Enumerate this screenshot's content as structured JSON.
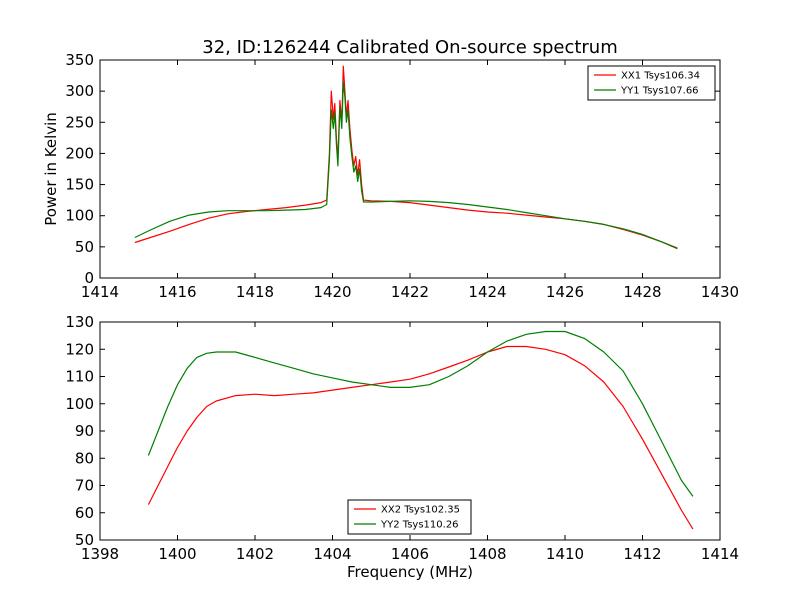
{
  "figure": {
    "title": "32, ID:126244 Calibrated On-source spectrum",
    "xlabel": "Frequency (MHz)",
    "top_ylabel": "Power in Kelvin"
  },
  "chart_data": [
    {
      "type": "line",
      "title": "32, ID:126244 Calibrated On-source spectrum",
      "xlabel": "",
      "ylabel": "Power in Kelvin",
      "xlim": [
        1414,
        1430
      ],
      "ylim": [
        0,
        350
      ],
      "xticks": [
        1414,
        1416,
        1418,
        1420,
        1422,
        1424,
        1426,
        1428,
        1430
      ],
      "yticks": [
        0,
        50,
        100,
        150,
        200,
        250,
        300,
        350
      ],
      "grid": false,
      "legend_position": "top-right",
      "series": [
        {
          "name": "XX1 Tsys106.34",
          "color": "#ff0000",
          "x": [
            1414.9,
            1415.3,
            1415.8,
            1416.3,
            1416.8,
            1417.3,
            1417.8,
            1418.3,
            1418.8,
            1419.3,
            1419.7,
            1419.85,
            1419.92,
            1419.97,
            1420.02,
            1420.06,
            1420.1,
            1420.14,
            1420.19,
            1420.24,
            1420.28,
            1420.32,
            1420.36,
            1420.4,
            1420.45,
            1420.5,
            1420.55,
            1420.6,
            1420.65,
            1420.7,
            1420.75,
            1420.8,
            1421.0,
            1421.5,
            1422.0,
            1422.5,
            1423.0,
            1423.5,
            1424.0,
            1424.5,
            1425.0,
            1425.5,
            1426.0,
            1426.5,
            1427.0,
            1427.5,
            1428.0,
            1428.5,
            1428.9
          ],
          "values": [
            57,
            65,
            75,
            86,
            96,
            103,
            107,
            110,
            113,
            117,
            121,
            125,
            200,
            300,
            255,
            280,
            225,
            190,
            285,
            250,
            340,
            300,
            260,
            285,
            240,
            205,
            180,
            195,
            165,
            190,
            150,
            125,
            124,
            123,
            121,
            117,
            113,
            109,
            106,
            104,
            101,
            98,
            95,
            91,
            86,
            78,
            69,
            58,
            48
          ]
        },
        {
          "name": "YY1 Tsys107.66",
          "color": "#008000",
          "x": [
            1414.9,
            1415.3,
            1415.8,
            1416.3,
            1416.8,
            1417.3,
            1417.8,
            1418.3,
            1418.8,
            1419.3,
            1419.7,
            1419.85,
            1419.92,
            1419.97,
            1420.02,
            1420.06,
            1420.1,
            1420.14,
            1420.19,
            1420.24,
            1420.28,
            1420.32,
            1420.36,
            1420.4,
            1420.45,
            1420.5,
            1420.55,
            1420.6,
            1420.65,
            1420.7,
            1420.75,
            1420.8,
            1421.0,
            1421.5,
            1422.0,
            1422.5,
            1423.0,
            1423.5,
            1424.0,
            1424.5,
            1425.0,
            1425.5,
            1426.0,
            1426.5,
            1427.0,
            1427.5,
            1428.0,
            1428.5,
            1428.9
          ],
          "values": [
            65,
            77,
            91,
            101,
            106,
            108,
            108,
            108,
            109,
            110,
            113,
            118,
            190,
            270,
            240,
            265,
            215,
            180,
            275,
            240,
            315,
            290,
            250,
            270,
            225,
            195,
            170,
            180,
            155,
            175,
            140,
            122,
            122,
            123,
            124,
            123,
            121,
            118,
            114,
            110,
            105,
            100,
            95,
            91,
            86,
            79,
            70,
            58,
            47
          ]
        }
      ]
    },
    {
      "type": "line",
      "title": "",
      "xlabel": "Frequency (MHz)",
      "ylabel": "",
      "xlim": [
        1398,
        1414
      ],
      "ylim": [
        50,
        130
      ],
      "xticks": [
        1398,
        1400,
        1402,
        1404,
        1406,
        1408,
        1410,
        1412,
        1414
      ],
      "yticks": [
        50,
        60,
        70,
        80,
        90,
        100,
        110,
        120,
        130
      ],
      "grid": false,
      "legend_position": "bottom-center",
      "series": [
        {
          "name": "XX2 Tsys102.35",
          "color": "#ff0000",
          "x": [
            1399.25,
            1399.5,
            1399.75,
            1400.0,
            1400.25,
            1400.5,
            1400.75,
            1401.0,
            1401.5,
            1402.0,
            1402.5,
            1403.0,
            1403.5,
            1404.0,
            1404.5,
            1405.0,
            1405.5,
            1406.0,
            1406.5,
            1407.0,
            1407.5,
            1408.0,
            1408.5,
            1409.0,
            1409.5,
            1410.0,
            1410.5,
            1411.0,
            1411.5,
            1412.0,
            1412.5,
            1413.0,
            1413.3
          ],
          "values": [
            63,
            70,
            77,
            84,
            90,
            95,
            99,
            101,
            103,
            103.5,
            103,
            103.5,
            104,
            105,
            106,
            107,
            108,
            109,
            111,
            113.5,
            116,
            119,
            121,
            121,
            120,
            118,
            114,
            108,
            99,
            87,
            74,
            61,
            54
          ]
        },
        {
          "name": "YY2 Tsys110.26",
          "color": "#008000",
          "x": [
            1399.25,
            1399.5,
            1399.75,
            1400.0,
            1400.25,
            1400.5,
            1400.75,
            1401.0,
            1401.5,
            1402.0,
            1402.5,
            1403.0,
            1403.5,
            1404.0,
            1404.5,
            1405.0,
            1405.5,
            1406.0,
            1406.5,
            1407.0,
            1407.5,
            1408.0,
            1408.5,
            1409.0,
            1409.5,
            1410.0,
            1410.5,
            1411.0,
            1411.5,
            1412.0,
            1412.5,
            1413.0,
            1413.3
          ],
          "values": [
            81,
            90,
            99,
            107,
            113,
            117,
            118.5,
            119,
            119,
            117,
            115,
            113,
            111,
            109.5,
            108,
            107,
            106,
            106,
            107,
            110,
            114,
            119,
            123,
            125.5,
            126.5,
            126.5,
            124,
            119,
            112,
            100,
            86,
            72,
            66
          ]
        }
      ]
    }
  ]
}
